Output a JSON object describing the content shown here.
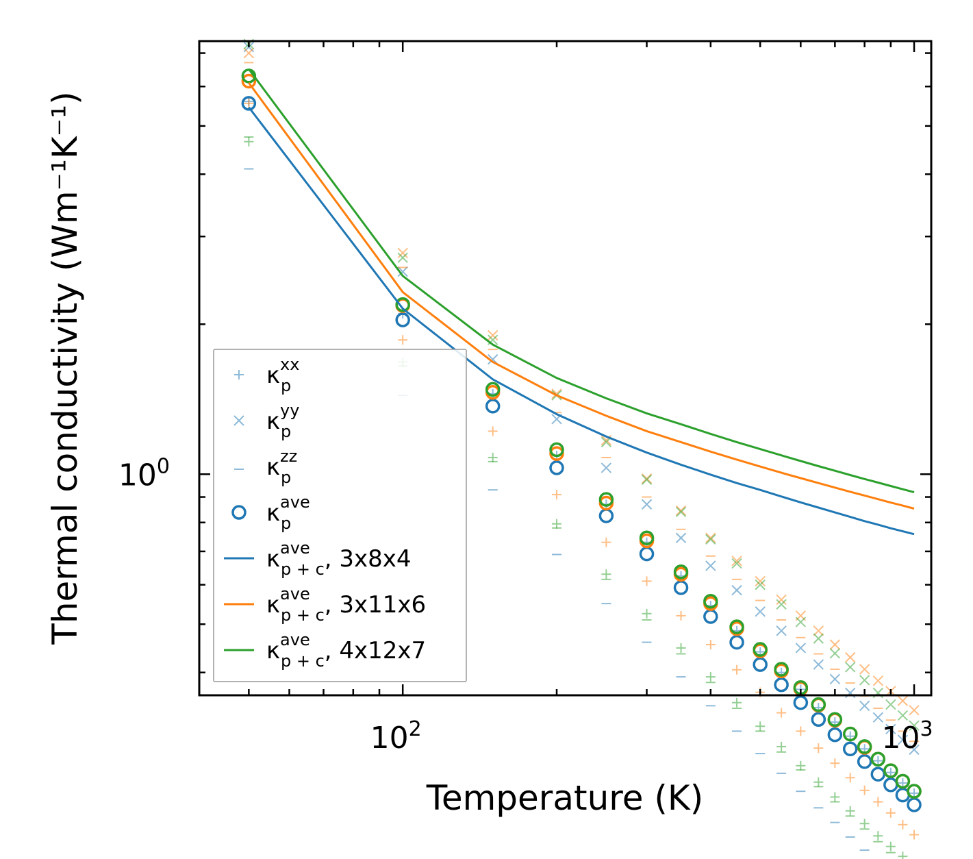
{
  "chart_data": {
    "type": "scatter",
    "xlabel": "Temperature (K)",
    "ylabel": "Thermal conductivity (Wm⁻¹K⁻¹)",
    "xscale": "log",
    "yscale": "log",
    "xlim": [
      40,
      1080
    ],
    "ylim": [
      0.36,
      7.4
    ],
    "x_tick_labels": [
      {
        "base": "10",
        "exp": "2",
        "value": 100
      },
      {
        "base": "10",
        "exp": "3",
        "value": 1000
      }
    ],
    "y_tick_labels": [
      {
        "base": "10",
        "exp": "0",
        "value": 1
      }
    ],
    "temperatures": [
      50,
      100,
      150,
      200,
      250,
      300,
      350,
      400,
      450,
      500,
      550,
      600,
      650,
      700,
      750,
      800,
      850,
      900,
      950,
      1000
    ],
    "legend_position": "lower-left",
    "legend": [
      {
        "symbol": "+",
        "label": "κ",
        "sub": "p",
        "sup": "xx",
        "suffix": ""
      },
      {
        "symbol": "x",
        "label": "κ",
        "sub": "p",
        "sup": "yy",
        "suffix": ""
      },
      {
        "symbol": "_",
        "label": "κ",
        "sub": "p",
        "sup": "zz",
        "suffix": ""
      },
      {
        "symbol": "o",
        "label": "κ",
        "sub": "p",
        "sup": "ave",
        "suffix": ""
      },
      {
        "symbol": "line",
        "color": "#1f77b4",
        "label": "κ",
        "sub": "p + c",
        "sup": "ave",
        "suffix": ", 3x8x4"
      },
      {
        "symbol": "line",
        "color": "#ff7f0e",
        "label": "κ",
        "sub": "p + c",
        "sup": "ave",
        "suffix": ", 3x11x6"
      },
      {
        "symbol": "line",
        "color": "#2ca02c",
        "label": "κ",
        "sub": "p + c",
        "sup": "ave",
        "suffix": ", 4x12x7"
      }
    ],
    "series": [
      {
        "name": "3x8x4",
        "color": "#1f77b4",
        "kxx": [
          5.6,
          2.1,
          1.45,
          1.09,
          0.87,
          0.73,
          0.625,
          0.545,
          0.485,
          0.44,
          0.4,
          0.37,
          0.34,
          0.318,
          0.298,
          0.281,
          0.266,
          0.252,
          0.24,
          0.229
        ],
        "kyy": [
          7.2,
          2.55,
          1.7,
          1.29,
          1.03,
          0.87,
          0.745,
          0.655,
          0.585,
          0.53,
          0.485,
          0.448,
          0.415,
          0.388,
          0.364,
          0.343,
          0.325,
          0.308,
          0.293,
          0.28
        ],
        "kzz": [
          4.1,
          1.44,
          0.93,
          0.69,
          0.55,
          0.46,
          0.392,
          0.343,
          0.305,
          0.275,
          0.251,
          0.231,
          0.214,
          0.2,
          0.187,
          0.176,
          0.167,
          0.158,
          0.151,
          0.144
        ],
        "kave": [
          5.55,
          2.04,
          1.37,
          1.03,
          0.825,
          0.692,
          0.592,
          0.518,
          0.46,
          0.415,
          0.378,
          0.348,
          0.322,
          0.3,
          0.281,
          0.265,
          0.25,
          0.238,
          0.227,
          0.217
        ],
        "kpc": [
          5.45,
          2.15,
          1.55,
          1.32,
          1.19,
          1.105,
          1.045,
          0.998,
          0.96,
          0.93,
          0.902,
          0.878,
          0.857,
          0.838,
          0.821,
          0.805,
          0.792,
          0.779,
          0.768,
          0.758
        ]
      },
      {
        "name": "3x11x6",
        "color": "#ff7f0e",
        "kxx": [
          5.55,
          1.86,
          1.22,
          0.91,
          0.73,
          0.61,
          0.52,
          0.455,
          0.405,
          0.365,
          0.332,
          0.305,
          0.282,
          0.263,
          0.246,
          0.232,
          0.22,
          0.209,
          0.198,
          0.189
        ],
        "kyy": [
          7.0,
          2.78,
          1.9,
          1.45,
          1.17,
          0.98,
          0.845,
          0.745,
          0.67,
          0.61,
          0.56,
          0.52,
          0.485,
          0.455,
          0.429,
          0.406,
          0.385,
          0.367,
          0.351,
          0.336
        ],
        "kzz": [
          6.7,
          2.6,
          1.78,
          1.33,
          1.08,
          0.9,
          0.775,
          0.685,
          0.615,
          0.558,
          0.51,
          0.47,
          0.436,
          0.406,
          0.381,
          0.359,
          0.339,
          0.321,
          0.305,
          0.291
        ],
        "kave": [
          6.15,
          2.18,
          1.46,
          1.1,
          0.875,
          0.735,
          0.63,
          0.55,
          0.49,
          0.442,
          0.403,
          0.371,
          0.344,
          0.321,
          0.301,
          0.283,
          0.268,
          0.254,
          0.242,
          0.231
        ],
        "kpc": [
          6.1,
          2.32,
          1.68,
          1.44,
          1.31,
          1.22,
          1.16,
          1.11,
          1.07,
          1.036,
          1.007,
          0.982,
          0.96,
          0.94,
          0.922,
          0.906,
          0.891,
          0.877,
          0.865,
          0.853
        ]
      },
      {
        "name": "4x12x7",
        "color": "#2ca02c",
        "kxx": [
          4.65,
          1.68,
          1.08,
          0.795,
          0.63,
          0.525,
          0.448,
          0.392,
          0.348,
          0.312,
          0.284,
          0.26,
          0.241,
          0.225,
          0.211,
          0.199,
          0.188,
          0.179,
          0.171,
          0.163
        ],
        "kyy": [
          7.3,
          2.72,
          1.86,
          1.44,
          1.16,
          0.975,
          0.84,
          0.74,
          0.662,
          0.6,
          0.548,
          0.505,
          0.468,
          0.437,
          0.41,
          0.386,
          0.364,
          0.345,
          0.328,
          0.313
        ],
        "kzz": [
          4.75,
          1.65,
          1.06,
          0.78,
          0.615,
          0.51,
          0.436,
          0.382,
          0.339,
          0.305,
          0.277,
          0.255,
          0.236,
          0.22,
          0.206,
          0.194,
          0.183,
          0.174,
          0.166,
          0.159
        ],
        "kave": [
          6.3,
          2.19,
          1.48,
          1.12,
          0.89,
          0.745,
          0.637,
          0.556,
          0.494,
          0.445,
          0.406,
          0.373,
          0.345,
          0.322,
          0.301,
          0.284,
          0.268,
          0.254,
          0.242,
          0.231
        ],
        "kpc": [
          6.5,
          2.5,
          1.82,
          1.56,
          1.42,
          1.325,
          1.26,
          1.205,
          1.16,
          1.123,
          1.091,
          1.063,
          1.038,
          1.016,
          0.996,
          0.978,
          0.962,
          0.947,
          0.933,
          0.92
        ]
      }
    ]
  }
}
